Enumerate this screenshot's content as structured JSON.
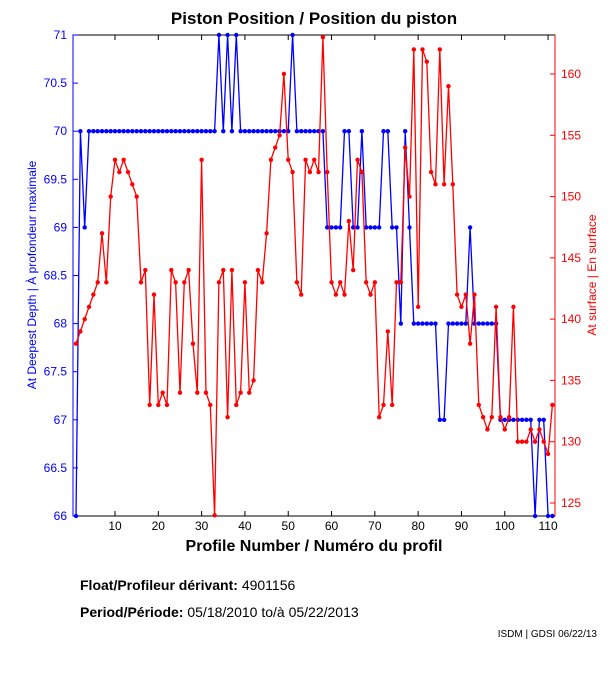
{
  "chart_data": {
    "type": "line",
    "title": "Piston Position / Position du piston",
    "xlabel": "Profile Number / Numéro du profil",
    "ylabel_left": "At Deepest Depth | À profondeur maximale",
    "ylabel_right": "At surface | En surface",
    "xlim": [
      0.3,
      111.6
    ],
    "ylim_left": [
      66,
      71
    ],
    "ylim_right": [
      123.94,
      163.18
    ],
    "xticks": [
      10,
      20,
      30,
      40,
      50,
      60,
      70,
      80,
      90,
      100,
      110
    ],
    "yticks_left": [
      "66",
      "66.5",
      "67",
      "67.5",
      "68",
      "68.5",
      "69",
      "69.5",
      "70",
      "70.5",
      "71"
    ],
    "yticks_right": [
      125,
      130,
      135,
      140,
      145,
      150,
      155,
      160
    ],
    "grid": false,
    "series": [
      {
        "name": "At Deepest Depth",
        "axis": "left",
        "color": "#0000ff",
        "values": [
          66,
          70,
          69,
          70,
          70,
          70,
          70,
          70,
          70,
          70,
          70,
          70,
          70,
          70,
          70,
          70,
          70,
          70,
          70,
          70,
          70,
          70,
          70,
          70,
          70,
          70,
          70,
          70,
          70,
          70,
          70,
          70,
          70,
          71,
          70,
          71,
          70,
          71,
          70,
          70,
          70,
          70,
          70,
          70,
          70,
          70,
          70,
          70,
          70,
          70,
          71,
          70,
          70,
          70,
          70,
          70,
          70,
          70,
          69,
          69,
          69,
          69,
          70,
          70,
          69,
          69,
          70,
          69,
          69,
          69,
          69,
          70,
          70,
          69,
          69,
          68,
          70,
          69,
          68,
          68,
          68,
          68,
          68,
          68,
          67,
          67,
          68,
          68,
          68,
          68,
          68,
          69,
          68,
          68,
          68,
          68,
          68,
          68,
          67,
          67,
          67,
          67,
          67,
          67,
          67,
          67,
          66,
          67,
          67,
          66,
          66
        ]
      },
      {
        "name": "At surface",
        "axis": "right",
        "color": "#ff0000",
        "values": [
          138,
          139,
          140,
          141,
          142,
          143,
          147,
          143,
          150,
          153,
          152,
          153,
          152,
          151,
          150,
          143,
          144,
          133,
          142,
          133,
          134,
          133,
          144,
          143,
          134,
          143,
          144,
          138,
          134,
          153,
          134,
          133,
          124,
          143,
          144,
          132,
          144,
          133,
          134,
          143,
          134,
          135,
          144,
          143,
          147,
          153,
          154,
          155,
          160,
          153,
          152,
          143,
          142,
          153,
          152,
          153,
          152,
          163,
          152,
          143,
          142,
          143,
          142,
          148,
          144,
          153,
          152,
          143,
          142,
          143,
          132,
          133,
          139,
          133,
          143,
          143,
          154,
          150,
          162,
          141,
          162,
          161,
          152,
          151,
          162,
          151,
          159,
          151,
          142,
          141,
          142,
          138,
          142,
          133,
          132,
          131,
          132,
          141,
          132,
          131,
          132,
          141,
          130,
          130,
          130,
          131,
          130,
          131,
          130,
          129,
          133
        ]
      }
    ]
  },
  "footer": {
    "float_label": "Float/Profileur dérivant:",
    "float_id": "4901156",
    "period_label": "Period/Période:",
    "start_date": "05/18/2010",
    "to_label": "to/à",
    "end_date": "05/22/2013",
    "credit": "ISDM | GDSI 06/22/13"
  },
  "colors": {
    "left_axis": "#0000ff",
    "right_axis": "#ff0000"
  }
}
